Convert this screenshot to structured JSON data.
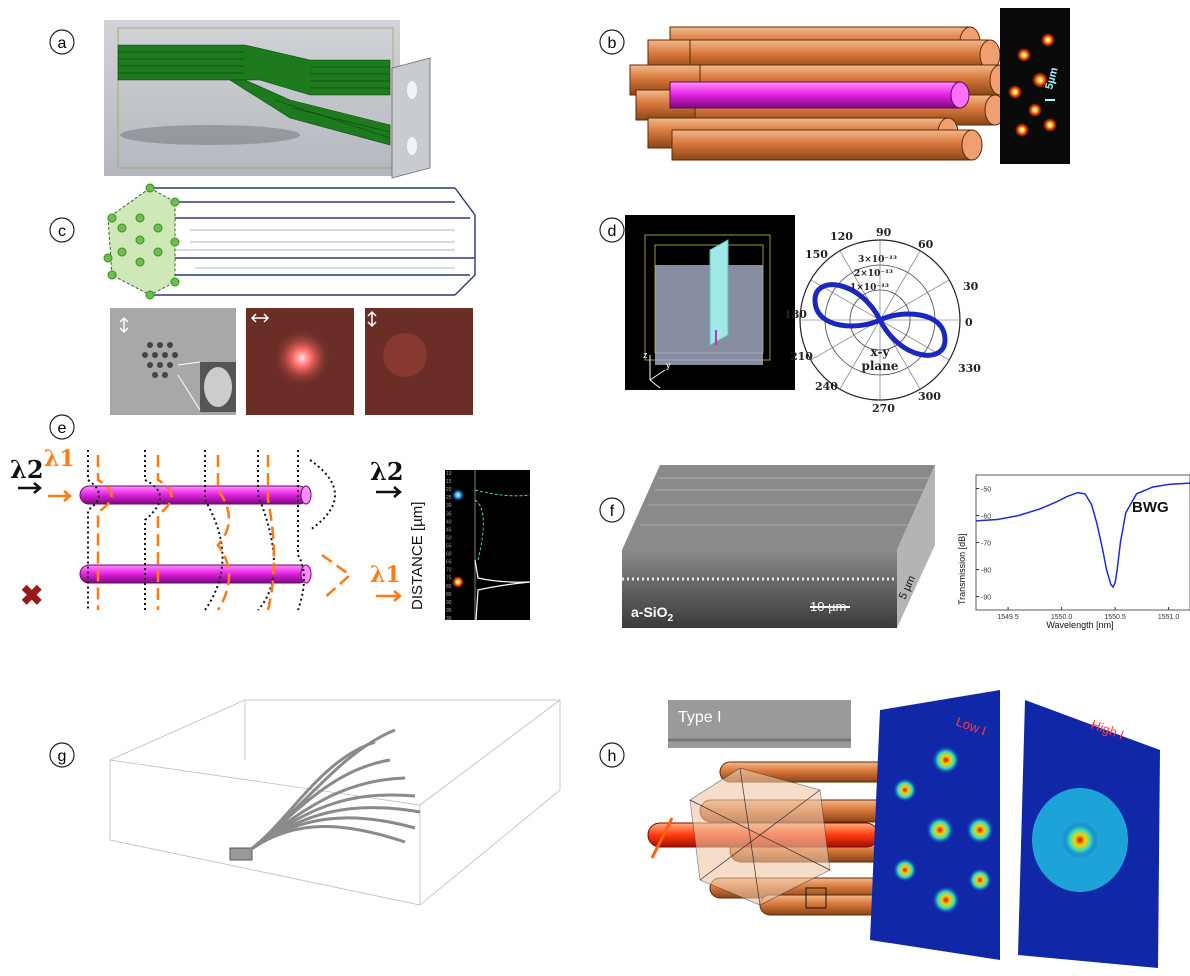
{
  "panels": {
    "a": {
      "label": "a"
    },
    "b": {
      "label": "b",
      "scale_text": "5µm"
    },
    "c": {
      "label": "c"
    },
    "d": {
      "label": "d",
      "polar_angles": [
        "120",
        "90",
        "60",
        "150",
        "30",
        "180",
        "0",
        "210",
        "330",
        "240",
        "270",
        "300"
      ],
      "radial_ticks": [
        "3×10⁻¹³",
        "2×10⁻¹³",
        "1×10⁻¹³"
      ],
      "plane_text": "x-y",
      "plane_text_2": "plane",
      "axis_z": "z",
      "axis_y": "y",
      "axis_x": "x"
    },
    "e": {
      "label": "e",
      "lambda2": "λ2",
      "lambda1": "λ1",
      "lambda2_right": "λ2",
      "lambda1_right": "λ1",
      "yaxis_label": "DISTANCE [µm]",
      "ticks": [
        "10",
        "15",
        "20",
        "25",
        "30",
        "35",
        "40",
        "45",
        "50",
        "55",
        "60",
        "65",
        "70",
        "75",
        "80",
        "85",
        "90",
        "95",
        "30"
      ]
    },
    "f": {
      "label": "f",
      "material_prefix": "a-SiO",
      "material_sub": "2",
      "scale_10": "10 µm",
      "scale_5": "5 µm",
      "chart_series": "BWG"
    },
    "g": {
      "label": "g"
    },
    "h": {
      "label": "h",
      "type_label": "Type I",
      "low_label": "Low I",
      "high_label": "High I"
    }
  },
  "chart_data": {
    "type": "line",
    "title": "",
    "xlabel": "Wavelength [nm]",
    "ylabel": "Transmission [dB]",
    "xlim": [
      1549.2,
      1551.2
    ],
    "ylim": [
      -95,
      -45
    ],
    "xticks": [
      "1549.5",
      "1550.0",
      "1550.5",
      "1551.0"
    ],
    "yticks": [
      "-50",
      "-60",
      "-70",
      "-80",
      "-90"
    ],
    "series": [
      {
        "name": "BWG",
        "color": "#1f2bd6",
        "x": [
          1549.2,
          1549.4,
          1549.6,
          1549.8,
          1549.95,
          1550.05,
          1550.15,
          1550.22,
          1550.28,
          1550.33,
          1550.38,
          1550.42,
          1550.46,
          1550.48,
          1550.5,
          1550.52,
          1550.55,
          1550.6,
          1550.7,
          1550.85,
          1551.0,
          1551.2
        ],
        "y": [
          -62.0,
          -61.5,
          -60.0,
          -57.5,
          -55.0,
          -53.0,
          -51.5,
          -52.0,
          -56.0,
          -63.0,
          -72.0,
          -80.0,
          -85.5,
          -86.5,
          -85.0,
          -80.0,
          -70.0,
          -59.0,
          -52.0,
          -49.5,
          -48.5,
          -48.0
        ]
      }
    ]
  }
}
